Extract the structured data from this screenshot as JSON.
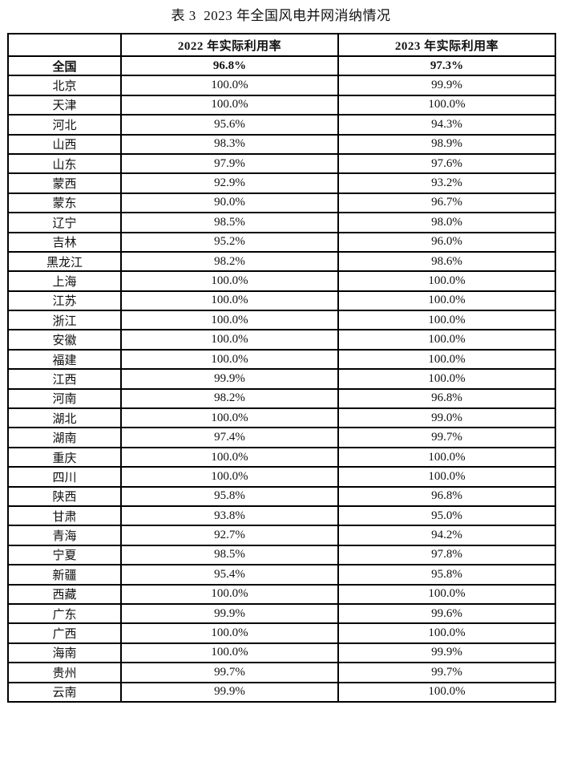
{
  "title": "表 3  2023 年全国风电并网消纳情况",
  "table": {
    "col_headers": [
      "",
      "2022 年实际利用率",
      "2023 年实际利用率"
    ],
    "rows": [
      {
        "region": "全国",
        "y2022": "96.8%",
        "y2023": "97.3%",
        "bold": true
      },
      {
        "region": "北京",
        "y2022": "100.0%",
        "y2023": "99.9%",
        "bold": false
      },
      {
        "region": "天津",
        "y2022": "100.0%",
        "y2023": "100.0%",
        "bold": false
      },
      {
        "region": "河北",
        "y2022": "95.6%",
        "y2023": "94.3%",
        "bold": false
      },
      {
        "region": "山西",
        "y2022": "98.3%",
        "y2023": "98.9%",
        "bold": false
      },
      {
        "region": "山东",
        "y2022": "97.9%",
        "y2023": "97.6%",
        "bold": false
      },
      {
        "region": "蒙西",
        "y2022": "92.9%",
        "y2023": "93.2%",
        "bold": false
      },
      {
        "region": "蒙东",
        "y2022": "90.0%",
        "y2023": "96.7%",
        "bold": false
      },
      {
        "region": "辽宁",
        "y2022": "98.5%",
        "y2023": "98.0%",
        "bold": false
      },
      {
        "region": "吉林",
        "y2022": "95.2%",
        "y2023": "96.0%",
        "bold": false
      },
      {
        "region": "黑龙江",
        "y2022": "98.2%",
        "y2023": "98.6%",
        "bold": false
      },
      {
        "region": "上海",
        "y2022": "100.0%",
        "y2023": "100.0%",
        "bold": false
      },
      {
        "region": "江苏",
        "y2022": "100.0%",
        "y2023": "100.0%",
        "bold": false
      },
      {
        "region": "浙江",
        "y2022": "100.0%",
        "y2023": "100.0%",
        "bold": false
      },
      {
        "region": "安徽",
        "y2022": "100.0%",
        "y2023": "100.0%",
        "bold": false
      },
      {
        "region": "福建",
        "y2022": "100.0%",
        "y2023": "100.0%",
        "bold": false
      },
      {
        "region": "江西",
        "y2022": "99.9%",
        "y2023": "100.0%",
        "bold": false
      },
      {
        "region": "河南",
        "y2022": "98.2%",
        "y2023": "96.8%",
        "bold": false
      },
      {
        "region": "湖北",
        "y2022": "100.0%",
        "y2023": "99.0%",
        "bold": false
      },
      {
        "region": "湖南",
        "y2022": "97.4%",
        "y2023": "99.7%",
        "bold": false
      },
      {
        "region": "重庆",
        "y2022": "100.0%",
        "y2023": "100.0%",
        "bold": false
      },
      {
        "region": "四川",
        "y2022": "100.0%",
        "y2023": "100.0%",
        "bold": false
      },
      {
        "region": "陕西",
        "y2022": "95.8%",
        "y2023": "96.8%",
        "bold": false
      },
      {
        "region": "甘肃",
        "y2022": "93.8%",
        "y2023": "95.0%",
        "bold": false
      },
      {
        "region": "青海",
        "y2022": "92.7%",
        "y2023": "94.2%",
        "bold": false
      },
      {
        "region": "宁夏",
        "y2022": "98.5%",
        "y2023": "97.8%",
        "bold": false
      },
      {
        "region": "新疆",
        "y2022": "95.4%",
        "y2023": "95.8%",
        "bold": false
      },
      {
        "region": "西藏",
        "y2022": "100.0%",
        "y2023": "100.0%",
        "bold": false
      },
      {
        "region": "广东",
        "y2022": "99.9%",
        "y2023": "99.6%",
        "bold": false
      },
      {
        "region": "广西",
        "y2022": "100.0%",
        "y2023": "100.0%",
        "bold": false
      },
      {
        "region": "海南",
        "y2022": "100.0%",
        "y2023": "99.9%",
        "bold": false
      },
      {
        "region": "贵州",
        "y2022": "99.7%",
        "y2023": "99.7%",
        "bold": false
      },
      {
        "region": "云南",
        "y2022": "99.9%",
        "y2023": "100.0%",
        "bold": false
      }
    ]
  },
  "colors": {
    "border": "#000000",
    "text": "#111111",
    "background": "#ffffff"
  }
}
